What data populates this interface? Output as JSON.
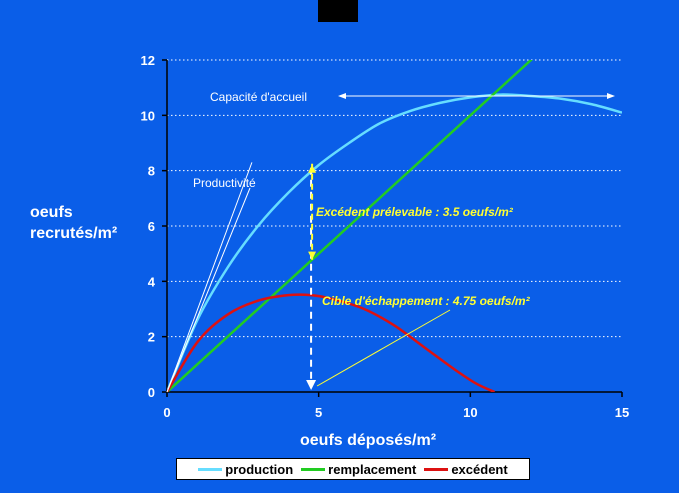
{
  "chart_data": {
    "type": "line",
    "xlabel": "oeufs déposés/m²",
    "ylabel_lines": [
      "oeufs",
      "recrutés/m²"
    ],
    "xlim": [
      0,
      15
    ],
    "ylim": [
      0,
      12
    ],
    "x_ticks": [
      0,
      5,
      10,
      15
    ],
    "y_ticks": [
      0,
      2,
      4,
      6,
      8,
      10,
      12
    ],
    "grid": "horizontal dotted",
    "legend_position": "bottom",
    "series": [
      {
        "name": "production",
        "color": "#66ddff",
        "x": [
          0,
          1,
          2,
          3,
          4,
          5,
          6,
          7,
          8,
          9,
          10,
          11,
          12,
          13,
          14,
          15
        ],
        "y": [
          0,
          2.6,
          4.5,
          6.0,
          7.2,
          8.2,
          9.0,
          9.7,
          10.15,
          10.45,
          10.65,
          10.75,
          10.7,
          10.6,
          10.4,
          10.1
        ]
      },
      {
        "name": "remplacement",
        "color": "#22cc22",
        "x": [
          0,
          12.15
        ],
        "y": [
          0,
          12.15
        ]
      },
      {
        "name": "excédent",
        "color": "#dd1111",
        "x": [
          0,
          1,
          2,
          3,
          4,
          4.75,
          5.5,
          6.5,
          7.5,
          8.5,
          9.5,
          10.2,
          10.8
        ],
        "y": [
          0,
          1.8,
          2.8,
          3.3,
          3.5,
          3.5,
          3.35,
          3.0,
          2.4,
          1.6,
          0.8,
          0.3,
          0
        ]
      }
    ],
    "annotations": {
      "capacite": "Capacité d'accueil",
      "productivite": "Productivité",
      "excedent": "Excédent prélevable : 3.5 oeufs/m²",
      "cible": "Cible d'échappement : 4.75 oeufs/m²"
    },
    "markers": {
      "vertical_x": 4.75,
      "excedent_from_y": 4.75,
      "excedent_to_y": 8.25,
      "capacite_y": 10.7
    }
  },
  "colors": {
    "background": "#0a5ee8",
    "annotation": "#ffff33",
    "axis": "#000000",
    "grid": "#ffffff"
  }
}
